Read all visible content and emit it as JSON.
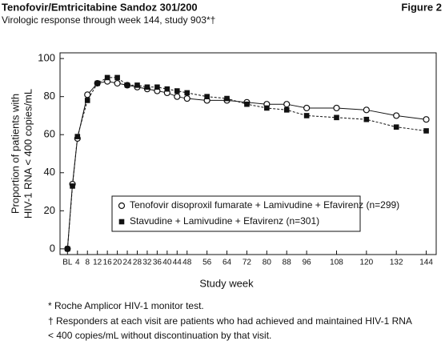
{
  "chart_data": {
    "type": "line",
    "title": "Tenofovir/Emtricitabine Sandoz 301/200",
    "figure_label": "Figure 2",
    "subtitle": "Virologic response through week 144, study 903*†",
    "y_label": [
      "Proportion of patients with",
      "HIV-1 RNA < 400 copies/mL"
    ],
    "x_label": "Study week",
    "x": [
      0,
      2,
      4,
      8,
      12,
      16,
      20,
      24,
      28,
      32,
      36,
      40,
      44,
      48,
      56,
      64,
      72,
      80,
      88,
      96,
      108,
      120,
      132,
      144
    ],
    "series": [
      {
        "name": "Tenofovir disoproxil fumarate + Lamivudine + Efavirenz (n=299)",
        "color": "#111111",
        "marker": "circle",
        "linestyle": "solid",
        "values": [
          0,
          34,
          58,
          81,
          87,
          88,
          87,
          86,
          85,
          84,
          83,
          82,
          80,
          79,
          78,
          78,
          77,
          76,
          76,
          74,
          74,
          73,
          70,
          68
        ]
      },
      {
        "name": "Stavudine + Lamivudine + Efavirenz (n=301)",
        "color": "#111111",
        "marker": "square",
        "linestyle": "dashed",
        "values": [
          0,
          33,
          59,
          78,
          87,
          90,
          90,
          86,
          86,
          85,
          85,
          84,
          83,
          82,
          80,
          79,
          76,
          74,
          73,
          70,
          69,
          68,
          64,
          62
        ]
      }
    ],
    "xlim": [
      -3,
      148
    ],
    "xticks": [
      {
        "value": 0,
        "label": "BL"
      },
      4,
      8,
      12,
      16,
      20,
      24,
      28,
      32,
      36,
      40,
      44,
      48,
      56,
      64,
      72,
      80,
      88,
      96,
      108,
      120,
      132,
      144
    ],
    "ylim": [
      -3,
      103
    ],
    "yticks": [
      0,
      20,
      40,
      60,
      80,
      100
    ],
    "footnotes": [
      "* Roche Amplicor HIV-1 monitor test.",
      "† Responders at each visit are patients who had achieved and maintained HIV-1 RNA",
      "< 400 copies/mL without discontinuation by that visit."
    ]
  }
}
